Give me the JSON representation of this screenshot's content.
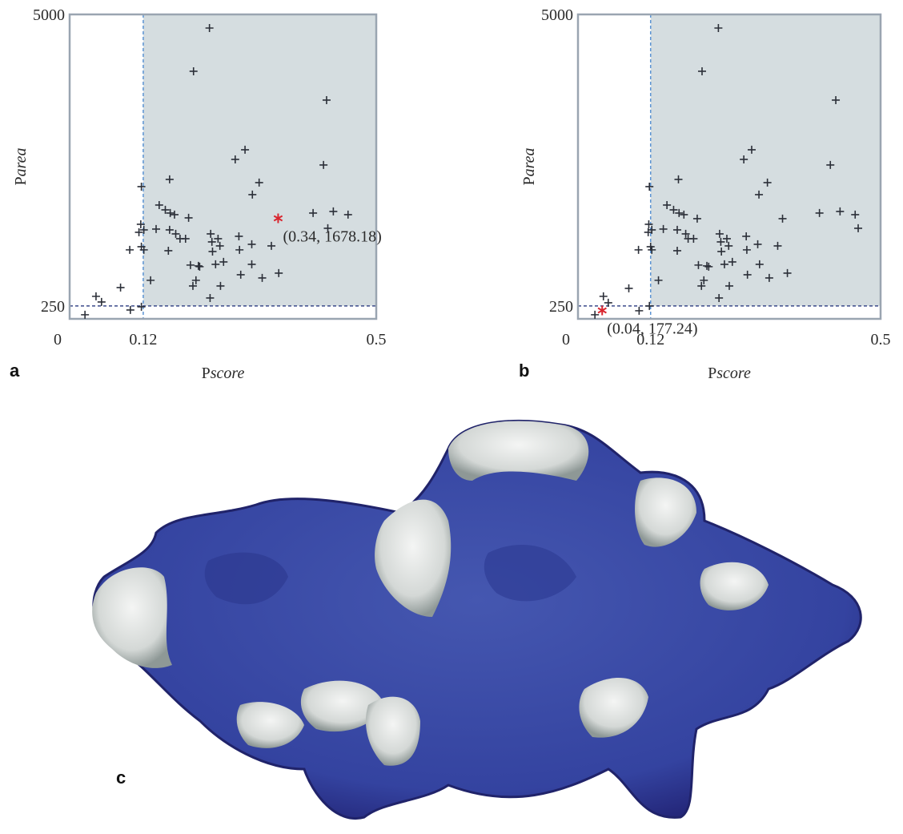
{
  "panels": [
    "a",
    "b",
    "c"
  ],
  "chart_data": [
    {
      "type": "scatter",
      "ylabel": [
        "P",
        "area"
      ],
      "xlabel": [
        "P",
        "score"
      ],
      "xlim": [
        0,
        0.5
      ],
      "ylim": [
        40,
        5000
      ],
      "xticks": [
        0,
        0.12,
        0.5
      ],
      "yticks": [
        250,
        5000
      ],
      "region": {
        "xmin": 0.12,
        "ymin": 250,
        "color": "#d5dde0"
      },
      "marker_color": "#2b2f38",
      "x": [
        0.025,
        0.043,
        0.052,
        0.083,
        0.099,
        0.117,
        0.098,
        0.117,
        0.116,
        0.113,
        0.121,
        0.117,
        0.121,
        0.132,
        0.141,
        0.146,
        0.156,
        0.164,
        0.171,
        0.163,
        0.173,
        0.18,
        0.189,
        0.161,
        0.194,
        0.163,
        0.202,
        0.228,
        0.197,
        0.201,
        0.206,
        0.21,
        0.212,
        0.23,
        0.232,
        0.233,
        0.242,
        0.245,
        0.229,
        0.238,
        0.246,
        0.251,
        0.276,
        0.277,
        0.279,
        0.27,
        0.286,
        0.297,
        0.298,
        0.309,
        0.297,
        0.314,
        0.329,
        0.341,
        0.397,
        0.414,
        0.419,
        0.43,
        0.454,
        0.421
      ],
      "y": [
        107,
        407,
        315,
        550,
        185,
        237,
        1164,
        2194,
        1581,
        1451,
        1490,
        1216,
        1164,
        668,
        1503,
        1894,
        1816,
        1764,
        1738,
        1490,
        1425,
        1346,
        1346,
        1150,
        1686,
        2312,
        4074,
        4778,
        916,
        576,
        668,
        903,
        890,
        1425,
        1294,
        1137,
        1346,
        1229,
        380,
        929,
        576,
        968,
        1385,
        1164,
        759,
        2638,
        2795,
        1255,
        2064,
        2260,
        929,
        707,
        1229,
        785,
        1764,
        2547,
        3604,
        1790,
        1738,
        1516
      ],
      "highlight": {
        "x": 0.34,
        "y": 1678.18,
        "label": "(0.34, 1678.18)",
        "color": "#d9262f"
      }
    },
    {
      "type": "scatter",
      "ylabel": [
        "P",
        "area"
      ],
      "xlabel": [
        "P",
        "score"
      ],
      "xlim": [
        0,
        0.5
      ],
      "ylim": [
        40,
        5000
      ],
      "xticks": [
        0,
        0.12,
        0.5
      ],
      "yticks": [
        250,
        5000
      ],
      "region": {
        "xmin": 0.12,
        "ymin": 250,
        "color": "#d5dde0"
      },
      "marker_color": "#2b2f38",
      "x": [
        0.028,
        0.042,
        0.05,
        0.084,
        0.101,
        0.118,
        0.117,
        0.116,
        0.122,
        0.12,
        0.122,
        0.1,
        0.118,
        0.133,
        0.141,
        0.147,
        0.158,
        0.167,
        0.175,
        0.164,
        0.178,
        0.182,
        0.191,
        0.164,
        0.197,
        0.166,
        0.205,
        0.232,
        0.199,
        0.204,
        0.208,
        0.213,
        0.216,
        0.234,
        0.236,
        0.237,
        0.246,
        0.249,
        0.233,
        0.242,
        0.25,
        0.255,
        0.278,
        0.279,
        0.28,
        0.274,
        0.287,
        0.297,
        0.299,
        0.313,
        0.3,
        0.316,
        0.33,
        0.346,
        0.338,
        0.399,
        0.417,
        0.426,
        0.433,
        0.458,
        0.463
      ],
      "y": [
        107,
        407,
        302,
        537,
        172,
        250,
        1581,
        1451,
        1490,
        1216,
        1164,
        1164,
        2194,
        668,
        1503,
        1894,
        1816,
        1764,
        1738,
        1490,
        1425,
        1346,
        1346,
        1150,
        1673,
        2312,
        4074,
        4778,
        916,
        576,
        668,
        903,
        890,
        1425,
        1294,
        1137,
        1346,
        1229,
        380,
        929,
        576,
        968,
        1385,
        1164,
        759,
        2638,
        2795,
        1255,
        2064,
        2260,
        929,
        707,
        1229,
        785,
        1673,
        1764,
        2547,
        3604,
        1790,
        1738,
        1516
      ],
      "highlight": {
        "x": 0.04,
        "y": 177.24,
        "label": "(0.04, 177.24)",
        "color": "#d9262f"
      }
    }
  ]
}
